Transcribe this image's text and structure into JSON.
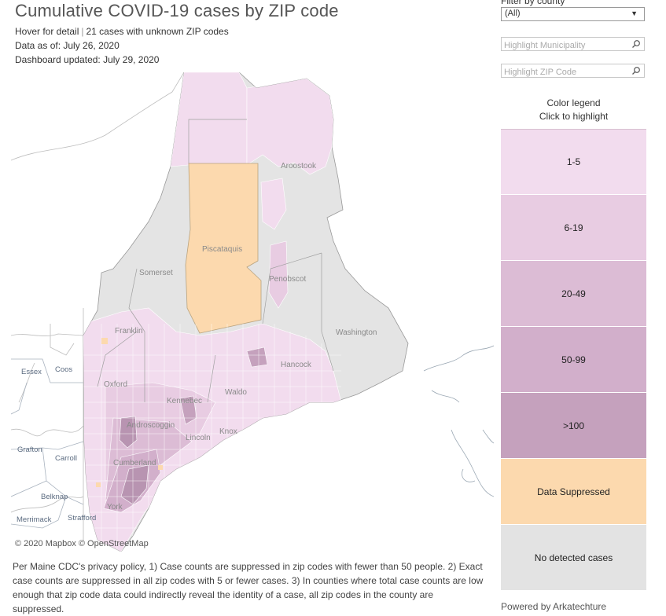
{
  "header": {
    "title": "Cumulative COVID-19 cases by ZIP code",
    "hover_label": "Hover for detail",
    "unknown_zip": "21 cases with unknown ZIP codes",
    "data_as_of_label": "Data as of:",
    "data_as_of_value": "July 26, 2020",
    "updated_label": "Dashboard updated:",
    "updated_value": "July 29, 2020"
  },
  "filters": {
    "county_label": "Filter by county",
    "county_value": "(All)",
    "municipality_placeholder": "Highlight Municipality",
    "zip_placeholder": "Highlight ZIP Code"
  },
  "legend": {
    "title": "Color legend",
    "subtitle": "Click to highlight",
    "items": [
      {
        "label": "1-5",
        "color": "#f2dcee"
      },
      {
        "label": "6-19",
        "color": "#e8cce2"
      },
      {
        "label": "20-49",
        "color": "#dcbcd5"
      },
      {
        "label": "50-99",
        "color": "#d2afcb"
      },
      {
        "label": ">100",
        "color": "#c5a1bd"
      },
      {
        "label": "Data Suppressed",
        "color": "#fcd9ae"
      },
      {
        "label": "No detected cases",
        "color": "#e3e3e3"
      }
    ]
  },
  "map": {
    "counties": [
      "Aroostook",
      "Piscataquis",
      "Somerset",
      "Penobscot",
      "Franklin",
      "Washington",
      "Hancock",
      "Oxford",
      "Waldo",
      "Kennebec",
      "Androscoggin",
      "Lincoln",
      "Knox",
      "Cumberland",
      "York"
    ],
    "nh_places": [
      "Essex",
      "Coos",
      "Grafton",
      "Carroll",
      "Belknap",
      "Merrimack",
      "Strafford"
    ],
    "credit": "© 2020 Mapbox © OpenStreetMap"
  },
  "footnote": "Per Maine CDC's privacy policy, 1) Case counts are suppressed in zip codes with fewer than 50 people. 2) Exact case counts are suppressed in all zip codes with 5 or fewer cases. 3) In counties where total case counts are low enough that zip code data could indirectly reveal the identity of a case, all zip codes in the county are suppressed.",
  "powered_by": "Powered by Arkatechture"
}
